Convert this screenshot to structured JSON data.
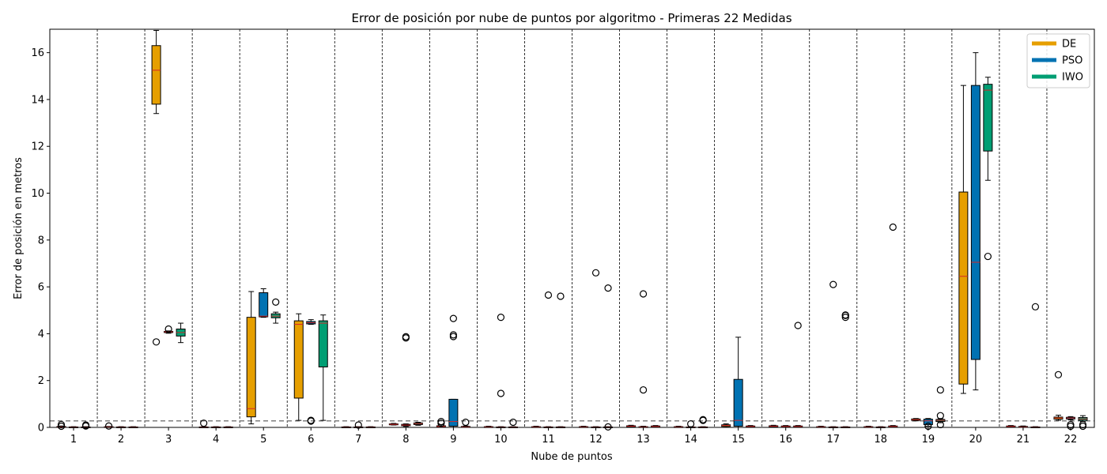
{
  "chart_data": {
    "type": "box",
    "title": "Error de posición por nube de puntos por algoritmo - Primeras 22 Medidas",
    "xlabel": "Nube de puntos",
    "ylabel": "Error de posición en metros",
    "ylim": [
      0,
      17
    ],
    "yticks": [
      0,
      2,
      4,
      6,
      8,
      10,
      12,
      14,
      16
    ],
    "categories": [
      "1",
      "2",
      "3",
      "4",
      "5",
      "6",
      "7",
      "8",
      "9",
      "10",
      "11",
      "12",
      "13",
      "14",
      "15",
      "16",
      "17",
      "18",
      "19",
      "20",
      "21",
      "22"
    ],
    "reference_line": 0.28,
    "grid": "vertical dashed separators between groups",
    "legend_position": "top-right",
    "series": [
      {
        "name": "DE",
        "color": "#E69F00",
        "boxes": [
          {
            "q1": 0.01,
            "med": 0.02,
            "q3": 0.04,
            "wlo": 0.0,
            "whi": 0.06,
            "fliers": [
              0.12,
              0.05
            ]
          },
          {
            "q1": 0.01,
            "med": 0.02,
            "q3": 0.03,
            "wlo": 0.0,
            "whi": 0.04,
            "fliers": [
              0.06
            ]
          },
          {
            "q1": 13.8,
            "med": 15.25,
            "q3": 16.3,
            "wlo": 13.4,
            "whi": 16.95,
            "fliers": [
              3.65
            ]
          },
          {
            "q1": 0.0,
            "med": 0.01,
            "q3": 0.02,
            "wlo": 0.0,
            "whi": 0.03,
            "fliers": [
              0.18
            ]
          },
          {
            "q1": 0.45,
            "med": 0.8,
            "q3": 4.7,
            "wlo": 0.15,
            "whi": 5.8,
            "fliers": []
          },
          {
            "q1": 1.25,
            "med": 4.4,
            "q3": 4.55,
            "wlo": 0.3,
            "whi": 4.85,
            "fliers": []
          },
          {
            "q1": 0.0,
            "med": 0.01,
            "q3": 0.02,
            "wlo": 0.0,
            "whi": 0.03,
            "fliers": []
          },
          {
            "q1": 0.11,
            "med": 0.13,
            "q3": 0.15,
            "wlo": 0.1,
            "whi": 0.17,
            "fliers": []
          },
          {
            "q1": 0.02,
            "med": 0.04,
            "q3": 0.07,
            "wlo": 0.0,
            "whi": 0.12,
            "fliers": [
              0.25,
              0.18
            ]
          },
          {
            "q1": 0.01,
            "med": 0.02,
            "q3": 0.03,
            "wlo": 0.0,
            "whi": 0.05,
            "fliers": []
          },
          {
            "q1": 0.01,
            "med": 0.02,
            "q3": 0.03,
            "wlo": 0.0,
            "whi": 0.05,
            "fliers": []
          },
          {
            "q1": 0.01,
            "med": 0.02,
            "q3": 0.03,
            "wlo": 0.0,
            "whi": 0.05,
            "fliers": []
          },
          {
            "q1": 0.03,
            "med": 0.05,
            "q3": 0.07,
            "wlo": 0.01,
            "whi": 0.09,
            "fliers": []
          },
          {
            "q1": 0.01,
            "med": 0.02,
            "q3": 0.03,
            "wlo": 0.0,
            "whi": 0.05,
            "fliers": []
          },
          {
            "q1": 0.04,
            "med": 0.08,
            "q3": 0.11,
            "wlo": 0.01,
            "whi": 0.15,
            "fliers": []
          },
          {
            "q1": 0.03,
            "med": 0.05,
            "q3": 0.07,
            "wlo": 0.01,
            "whi": 0.09,
            "fliers": []
          },
          {
            "q1": 0.01,
            "med": 0.02,
            "q3": 0.03,
            "wlo": 0.0,
            "whi": 0.05,
            "fliers": []
          },
          {
            "q1": 0.01,
            "med": 0.02,
            "q3": 0.03,
            "wlo": 0.0,
            "whi": 0.05,
            "fliers": []
          },
          {
            "q1": 0.3,
            "med": 0.33,
            "q3": 0.36,
            "wlo": 0.28,
            "whi": 0.38,
            "fliers": []
          },
          {
            "q1": 1.85,
            "med": 6.45,
            "q3": 10.05,
            "wlo": 1.45,
            "whi": 14.6,
            "fliers": []
          },
          {
            "q1": 0.02,
            "med": 0.04,
            "q3": 0.06,
            "wlo": 0.0,
            "whi": 0.08,
            "fliers": []
          },
          {
            "q1": 0.35,
            "med": 0.4,
            "q3": 0.44,
            "wlo": 0.3,
            "whi": 0.52,
            "fliers": [
              2.25
            ]
          }
        ]
      },
      {
        "name": "PSO",
        "color": "#0072B2",
        "boxes": [
          {
            "q1": 0.0,
            "med": 0.01,
            "q3": 0.02,
            "wlo": 0.0,
            "whi": 0.03,
            "fliers": []
          },
          {
            "q1": 0.0,
            "med": 0.01,
            "q3": 0.02,
            "wlo": 0.0,
            "whi": 0.03,
            "fliers": []
          },
          {
            "q1": 4.05,
            "med": 4.08,
            "q3": 4.1,
            "wlo": 4.02,
            "whi": 4.12,
            "fliers": [
              4.2
            ]
          },
          {
            "q1": 0.0,
            "med": 0.01,
            "q3": 0.02,
            "wlo": 0.0,
            "whi": 0.03,
            "fliers": []
          },
          {
            "q1": 4.72,
            "med": 4.75,
            "q3": 5.75,
            "wlo": 4.7,
            "whi": 5.92,
            "fliers": []
          },
          {
            "q1": 4.42,
            "med": 4.47,
            "q3": 4.52,
            "wlo": 4.4,
            "whi": 4.6,
            "fliers": [
              0.3,
              0.27
            ]
          },
          {
            "q1": 0.0,
            "med": 0.01,
            "q3": 0.02,
            "wlo": 0.0,
            "whi": 0.03,
            "fliers": [
              0.1
            ]
          },
          {
            "q1": 0.07,
            "med": 0.1,
            "q3": 0.13,
            "wlo": 0.04,
            "whi": 0.15,
            "fliers": [
              3.87,
              3.82
            ]
          },
          {
            "q1": 0.05,
            "med": 0.25,
            "q3": 1.2,
            "wlo": 0.0,
            "whi": 1.2,
            "fliers": [
              4.65,
              3.95,
              3.88
            ]
          },
          {
            "q1": 0.0,
            "med": 0.01,
            "q3": 0.02,
            "wlo": 0.0,
            "whi": 0.03,
            "fliers": [
              4.7,
              1.45
            ]
          },
          {
            "q1": 0.0,
            "med": 0.01,
            "q3": 0.02,
            "wlo": 0.0,
            "whi": 0.03,
            "fliers": [
              5.65
            ]
          },
          {
            "q1": 0.0,
            "med": 0.01,
            "q3": 0.02,
            "wlo": 0.0,
            "whi": 0.03,
            "fliers": [
              6.6
            ]
          },
          {
            "q1": 0.01,
            "med": 0.02,
            "q3": 0.03,
            "wlo": 0.0,
            "whi": 0.05,
            "fliers": [
              5.7,
              1.6
            ]
          },
          {
            "q1": 0.0,
            "med": 0.01,
            "q3": 0.02,
            "wlo": 0.0,
            "whi": 0.03,
            "fliers": [
              0.15
            ]
          },
          {
            "q1": 0.05,
            "med": 0.3,
            "q3": 2.05,
            "wlo": 0.0,
            "whi": 3.85,
            "fliers": []
          },
          {
            "q1": 0.02,
            "med": 0.04,
            "q3": 0.06,
            "wlo": 0.0,
            "whi": 0.08,
            "fliers": []
          },
          {
            "q1": 0.0,
            "med": 0.01,
            "q3": 0.02,
            "wlo": 0.0,
            "whi": 0.03,
            "fliers": [
              6.1
            ]
          },
          {
            "q1": 0.0,
            "med": 0.01,
            "q3": 0.02,
            "wlo": 0.0,
            "whi": 0.03,
            "fliers": []
          },
          {
            "q1": 0.12,
            "med": 0.28,
            "q3": 0.35,
            "wlo": 0.05,
            "whi": 0.38,
            "fliers": [
              0.05
            ]
          },
          {
            "q1": 2.9,
            "med": 7.05,
            "q3": 14.6,
            "wlo": 1.6,
            "whi": 16.0,
            "fliers": []
          },
          {
            "q1": 0.0,
            "med": 0.02,
            "q3": 0.04,
            "wlo": 0.0,
            "whi": 0.06,
            "fliers": []
          },
          {
            "q1": 0.36,
            "med": 0.4,
            "q3": 0.43,
            "wlo": 0.32,
            "whi": 0.46,
            "fliers": [
              0.12,
              0.05
            ]
          }
        ]
      },
      {
        "name": "IWO",
        "color": "#009E73",
        "boxes": [
          {
            "q1": 0.0,
            "med": 0.01,
            "q3": 0.02,
            "wlo": 0.0,
            "whi": 0.03,
            "fliers": [
              0.1,
              0.06
            ]
          },
          {
            "q1": 0.0,
            "med": 0.01,
            "q3": 0.02,
            "wlo": 0.0,
            "whi": 0.03,
            "fliers": []
          },
          {
            "q1": 3.9,
            "med": 4.05,
            "q3": 4.2,
            "wlo": 3.62,
            "whi": 4.45,
            "fliers": []
          },
          {
            "q1": 0.0,
            "med": 0.01,
            "q3": 0.02,
            "wlo": 0.0,
            "whi": 0.03,
            "fliers": []
          },
          {
            "q1": 4.68,
            "med": 4.75,
            "q3": 4.85,
            "wlo": 4.45,
            "whi": 4.92,
            "fliers": [
              5.35
            ]
          },
          {
            "q1": 2.58,
            "med": 4.45,
            "q3": 4.55,
            "wlo": 0.3,
            "whi": 4.8,
            "fliers": []
          },
          {
            "q1": 0.0,
            "med": 0.01,
            "q3": 0.02,
            "wlo": 0.0,
            "whi": 0.03,
            "fliers": []
          },
          {
            "q1": 0.12,
            "med": 0.16,
            "q3": 0.19,
            "wlo": 0.09,
            "whi": 0.22,
            "fliers": []
          },
          {
            "q1": 0.0,
            "med": 0.02,
            "q3": 0.04,
            "wlo": 0.0,
            "whi": 0.06,
            "fliers": [
              0.22
            ]
          },
          {
            "q1": 0.0,
            "med": 0.01,
            "q3": 0.02,
            "wlo": 0.0,
            "whi": 0.03,
            "fliers": [
              0.22
            ]
          },
          {
            "q1": 0.0,
            "med": 0.01,
            "q3": 0.02,
            "wlo": 0.0,
            "whi": 0.03,
            "fliers": [
              5.6
            ]
          },
          {
            "q1": 0.0,
            "med": 0.01,
            "q3": 0.02,
            "wlo": 0.0,
            "whi": 0.03,
            "fliers": [
              5.95,
              0.02
            ]
          },
          {
            "q1": 0.02,
            "med": 0.04,
            "q3": 0.06,
            "wlo": 0.0,
            "whi": 0.08,
            "fliers": []
          },
          {
            "q1": 0.0,
            "med": 0.01,
            "q3": 0.02,
            "wlo": 0.0,
            "whi": 0.03,
            "fliers": [
              0.33,
              0.3
            ]
          },
          {
            "q1": 0.02,
            "med": 0.04,
            "q3": 0.06,
            "wlo": 0.0,
            "whi": 0.08,
            "fliers": []
          },
          {
            "q1": 0.02,
            "med": 0.04,
            "q3": 0.06,
            "wlo": 0.0,
            "whi": 0.08,
            "fliers": [
              4.35
            ]
          },
          {
            "q1": 0.0,
            "med": 0.01,
            "q3": 0.02,
            "wlo": 0.0,
            "whi": 0.03,
            "fliers": [
              4.78,
              4.7,
              4.8
            ]
          },
          {
            "q1": 0.02,
            "med": 0.04,
            "q3": 0.06,
            "wlo": 0.0,
            "whi": 0.08,
            "fliers": [
              8.55
            ]
          },
          {
            "q1": 0.25,
            "med": 0.3,
            "q3": 0.34,
            "wlo": 0.2,
            "whi": 0.38,
            "fliers": [
              1.6,
              0.5,
              0.12
            ]
          },
          {
            "q1": 11.8,
            "med": 14.4,
            "q3": 14.65,
            "wlo": 10.55,
            "whi": 14.95,
            "fliers": [
              7.3
            ]
          },
          {
            "q1": 0.0,
            "med": 0.01,
            "q3": 0.02,
            "wlo": 0.0,
            "whi": 0.03,
            "fliers": [
              5.15
            ]
          },
          {
            "q1": 0.3,
            "med": 0.36,
            "q3": 0.42,
            "wlo": 0.25,
            "whi": 0.5,
            "fliers": [
              0.12,
              0.05
            ]
          }
        ]
      }
    ]
  }
}
